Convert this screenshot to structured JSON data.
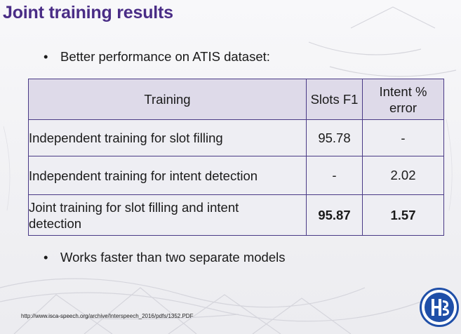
{
  "slide": {
    "title": "Joint training results",
    "bullets": [
      "Better performance on ATIS dataset:",
      "Works faster than two separate models"
    ],
    "bullet_symbol": "•",
    "footer_link": "http://www.isca-speech.org/archive/Interspeech_2016/pdfs/1352.PDF",
    "logo_icon": "hse-university-logo",
    "colors": {
      "title": "#4a2d86",
      "table_border": "#4a3a86",
      "header_bg": "#dedae9",
      "cell_bg": "#eeeef3",
      "logo_blue": "#1f4fa8"
    }
  },
  "table": {
    "headers": {
      "training": "Training",
      "slots": "Slots F1",
      "intent_line1": "Intent %",
      "intent_line2": "error"
    },
    "rows": [
      {
        "label": "Independent training for slot filling",
        "slots_f1": "95.78",
        "intent_error": "-"
      },
      {
        "label": "Independent training for intent detection",
        "slots_f1": "-",
        "intent_error": "2.02"
      },
      {
        "label_line1": "Joint training for slot filling and intent",
        "label_line2": "detection",
        "slots_f1": "95.87",
        "intent_error": "1.57"
      }
    ]
  }
}
